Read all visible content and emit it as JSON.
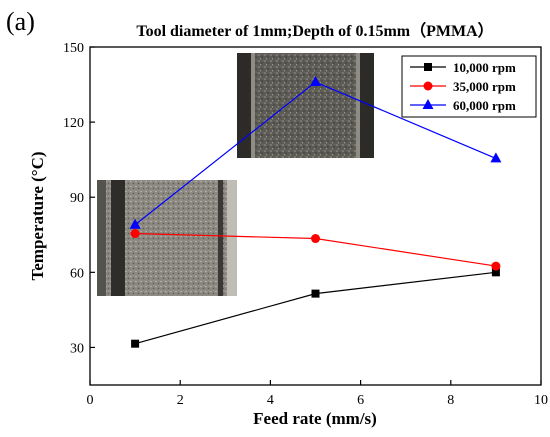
{
  "panel_label": "(a)",
  "chart_data": {
    "type": "line",
    "title": "Tool diameter of 1mm;Depth of 0.15mm（PMMA）",
    "xlabel": "Feed rate (mm/s)",
    "ylabel": "Temperature (°C)",
    "xlim": [
      0,
      10
    ],
    "ylim": [
      15,
      150
    ],
    "xticks": [
      0,
      2,
      4,
      6,
      8,
      10
    ],
    "yticks": [
      30,
      60,
      90,
      120,
      150
    ],
    "grid": false,
    "legend_position": "top-right",
    "x": [
      1,
      5,
      9
    ],
    "series": [
      {
        "name": "10,000 rpm",
        "values": [
          31.5,
          51.5,
          60
        ],
        "color": "#000000",
        "marker": "square"
      },
      {
        "name": "35,000 rpm",
        "values": [
          75.5,
          73.5,
          62.5
        ],
        "color": "#ff0000",
        "marker": "circle"
      },
      {
        "name": "60,000 rpm",
        "values": [
          79,
          136,
          105.5
        ],
        "color": "#0000ff",
        "marker": "triangle"
      }
    ]
  }
}
